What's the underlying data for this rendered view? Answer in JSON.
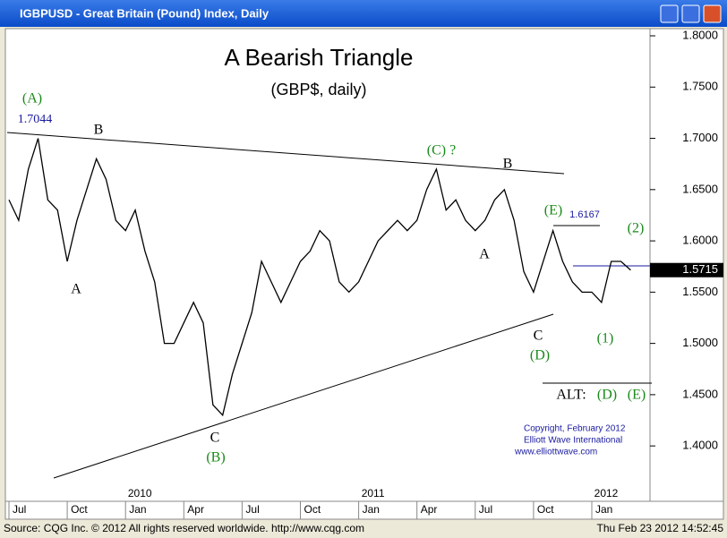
{
  "window": {
    "title": "IGBPUSD - Great Britain (Pound) Index, Daily"
  },
  "footer": {
    "source": "Source: CQG Inc. © 2012 All rights reserved worldwide. http://www.cqg.com",
    "timestamp": "Thu Feb 23 2012 14:52:45"
  },
  "chart_data": {
    "type": "line",
    "title": "A Bearish Triangle",
    "subtitle": "(GBP$, daily)",
    "color": "#000000",
    "categories": [
      "Jul",
      null,
      null,
      null,
      null,
      null,
      "Oct",
      null,
      null,
      null,
      null,
      null,
      "Jan",
      null,
      null,
      null,
      null,
      null,
      "Apr",
      null,
      null,
      null,
      null,
      null,
      "Jul",
      null,
      null,
      null,
      null,
      null,
      "Oct",
      null,
      null,
      null,
      null,
      null,
      "Jan",
      null,
      null,
      null,
      null,
      null,
      "Apr",
      null,
      null,
      null,
      null,
      null,
      "Jul",
      null,
      null,
      null,
      null,
      null,
      "Oct",
      null,
      null,
      null,
      null,
      null,
      "Jan",
      null,
      null,
      null,
      null
    ],
    "values": [
      1.64,
      1.62,
      1.67,
      1.7,
      1.64,
      1.63,
      1.58,
      1.62,
      1.65,
      1.68,
      1.66,
      1.62,
      1.61,
      1.63,
      1.59,
      1.56,
      1.5,
      1.5,
      1.52,
      1.54,
      1.52,
      1.44,
      1.43,
      1.47,
      1.5,
      1.53,
      1.58,
      1.56,
      1.54,
      1.56,
      1.58,
      1.59,
      1.61,
      1.6,
      1.56,
      1.55,
      1.56,
      1.58,
      1.6,
      1.61,
      1.62,
      1.61,
      1.62,
      1.65,
      1.67,
      1.63,
      1.64,
      1.62,
      1.61,
      1.62,
      1.64,
      1.65,
      1.62,
      1.57,
      1.55,
      1.58,
      1.61,
      1.58,
      1.56,
      1.55,
      1.55,
      1.54,
      1.58,
      1.58,
      1.5715
    ],
    "years": [
      "2010",
      "2011",
      "2012"
    ],
    "ylim": [
      1.346,
      1.807
    ],
    "yticks": [
      {
        "value": 1.4,
        "label": "1.4000"
      },
      {
        "value": 1.45,
        "label": "1.4500"
      },
      {
        "value": 1.5,
        "label": "1.5000"
      },
      {
        "value": 1.55,
        "label": "1.5500"
      },
      {
        "value": 1.6,
        "label": "1.6000"
      },
      {
        "value": 1.65,
        "label": "1.6500"
      },
      {
        "value": 1.7,
        "label": "1.7000"
      },
      {
        "value": 1.75,
        "label": "1.7500"
      },
      {
        "value": 1.8,
        "label": "1.8000"
      }
    ],
    "annotations": [
      "(A)",
      "1.7044",
      "B",
      "A",
      "C",
      "(B)",
      "(C) ?",
      "B",
      "A",
      "C",
      "(D)",
      "(E)",
      "1.6167",
      "(2)",
      "(1)",
      "ALT:",
      "(D)",
      "(E)",
      "Copyright, February 2012",
      "Elliott Wave International",
      "www.elliottwave.com"
    ]
  }
}
